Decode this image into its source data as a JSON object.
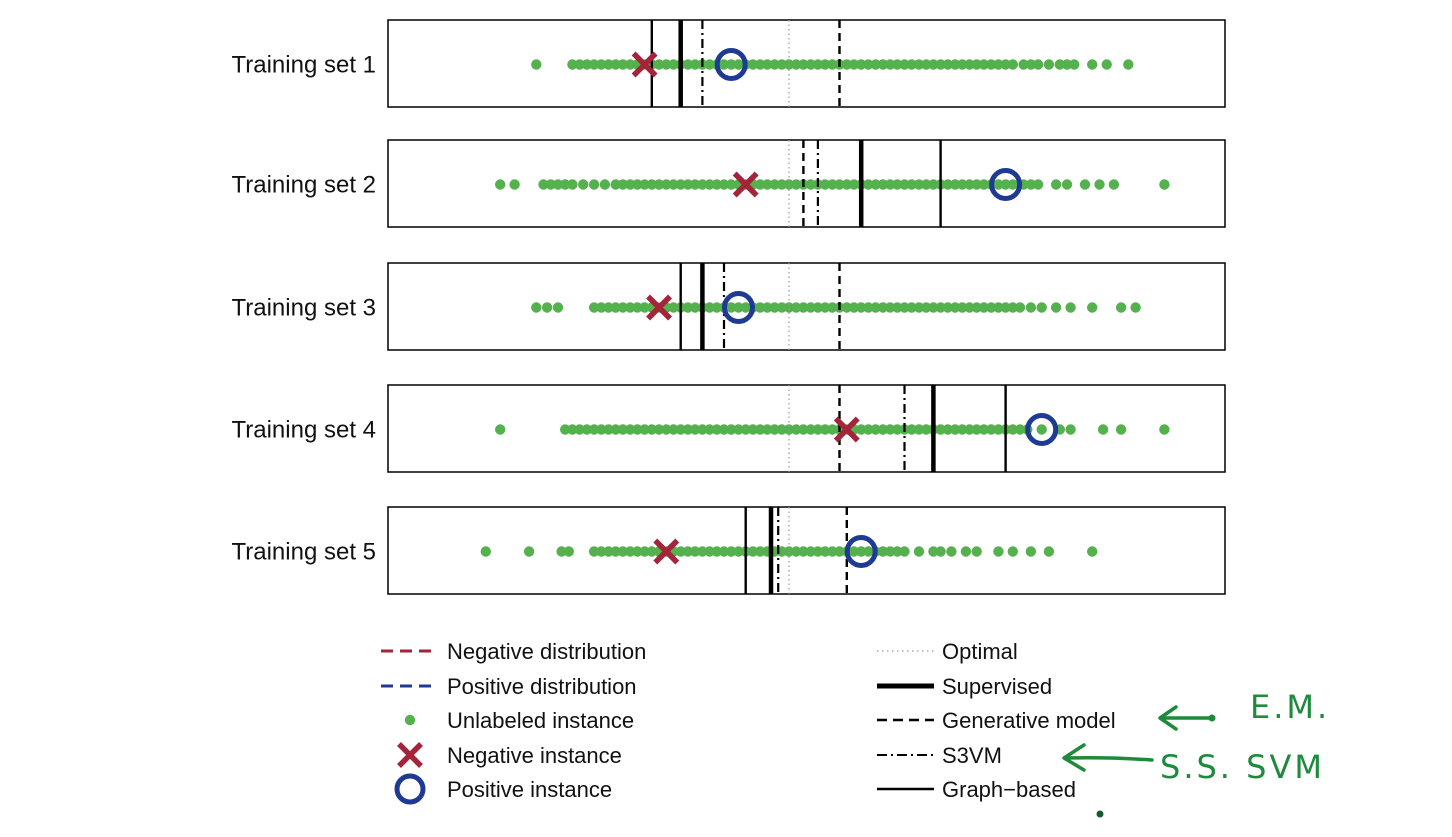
{
  "chart_data": {
    "type": "scatter",
    "axis": "1-D strip plot, no visible axis ticks",
    "xlim": [
      0,
      1
    ],
    "panels": [
      {
        "label": "Training set 1",
        "unlabeled": [
          0.15,
          0.2,
          0.21,
          0.22,
          0.23,
          0.24,
          0.25,
          0.26,
          0.27,
          0.28,
          0.29,
          0.3,
          0.31,
          0.32,
          0.33,
          0.34,
          0.35,
          0.36,
          0.37,
          0.38,
          0.39,
          0.4,
          0.41,
          0.42,
          0.43,
          0.44,
          0.45,
          0.46,
          0.47,
          0.48,
          0.49,
          0.5,
          0.51,
          0.52,
          0.53,
          0.54,
          0.55,
          0.56,
          0.57,
          0.58,
          0.59,
          0.6,
          0.61,
          0.62,
          0.63,
          0.64,
          0.65,
          0.66,
          0.67,
          0.68,
          0.69,
          0.7,
          0.71,
          0.72,
          0.73,
          0.74,
          0.75,
          0.76,
          0.77,
          0.78,
          0.79,
          0.8,
          0.81,
          0.825,
          0.835,
          0.845,
          0.86,
          0.875,
          0.885,
          0.895,
          0.92,
          0.94,
          0.97
        ],
        "negative": 0.3,
        "positive": 0.42,
        "optimal": 0.5,
        "supervised": 0.35,
        "generative": 0.57,
        "s3vm": 0.38,
        "graph": 0.31
      },
      {
        "label": "Training set 2",
        "unlabeled": [
          0.1,
          0.12,
          0.16,
          0.17,
          0.18,
          0.19,
          0.2,
          0.215,
          0.23,
          0.245,
          0.26,
          0.27,
          0.28,
          0.29,
          0.3,
          0.31,
          0.32,
          0.33,
          0.34,
          0.35,
          0.36,
          0.37,
          0.38,
          0.39,
          0.4,
          0.41,
          0.42,
          0.43,
          0.44,
          0.45,
          0.46,
          0.47,
          0.48,
          0.49,
          0.5,
          0.51,
          0.52,
          0.53,
          0.54,
          0.55,
          0.56,
          0.57,
          0.58,
          0.59,
          0.6,
          0.61,
          0.62,
          0.63,
          0.64,
          0.65,
          0.66,
          0.67,
          0.68,
          0.69,
          0.7,
          0.71,
          0.72,
          0.73,
          0.74,
          0.75,
          0.76,
          0.77,
          0.78,
          0.79,
          0.8,
          0.81,
          0.825,
          0.835,
          0.845,
          0.87,
          0.885,
          0.91,
          0.93,
          0.95,
          1.02
        ],
        "negative": 0.44,
        "positive": 0.8,
        "optimal": 0.5,
        "supervised": 0.6,
        "generative": 0.52,
        "s3vm": 0.54,
        "graph": 0.71
      },
      {
        "label": "Training set 3",
        "unlabeled": [
          0.15,
          0.165,
          0.18,
          0.23,
          0.24,
          0.25,
          0.26,
          0.27,
          0.28,
          0.29,
          0.3,
          0.31,
          0.32,
          0.33,
          0.34,
          0.35,
          0.36,
          0.37,
          0.38,
          0.39,
          0.4,
          0.41,
          0.42,
          0.43,
          0.44,
          0.45,
          0.46,
          0.47,
          0.48,
          0.49,
          0.5,
          0.51,
          0.52,
          0.53,
          0.54,
          0.55,
          0.56,
          0.57,
          0.58,
          0.59,
          0.6,
          0.61,
          0.62,
          0.63,
          0.64,
          0.65,
          0.66,
          0.67,
          0.68,
          0.69,
          0.7,
          0.71,
          0.72,
          0.73,
          0.74,
          0.75,
          0.76,
          0.77,
          0.78,
          0.79,
          0.8,
          0.81,
          0.82,
          0.835,
          0.85,
          0.87,
          0.89,
          0.92,
          0.96,
          0.98
        ],
        "negative": 0.32,
        "positive": 0.43,
        "optimal": 0.5,
        "supervised": 0.38,
        "generative": 0.57,
        "s3vm": 0.41,
        "graph": 0.35
      },
      {
        "label": "Training set 4",
        "unlabeled": [
          0.1,
          0.19,
          0.2,
          0.21,
          0.22,
          0.23,
          0.24,
          0.25,
          0.26,
          0.27,
          0.28,
          0.29,
          0.3,
          0.31,
          0.32,
          0.33,
          0.34,
          0.35,
          0.36,
          0.37,
          0.38,
          0.39,
          0.4,
          0.41,
          0.42,
          0.43,
          0.44,
          0.45,
          0.46,
          0.47,
          0.48,
          0.49,
          0.5,
          0.51,
          0.52,
          0.53,
          0.54,
          0.55,
          0.56,
          0.57,
          0.58,
          0.59,
          0.6,
          0.61,
          0.62,
          0.63,
          0.64,
          0.65,
          0.66,
          0.67,
          0.68,
          0.69,
          0.7,
          0.71,
          0.72,
          0.73,
          0.74,
          0.75,
          0.76,
          0.77,
          0.78,
          0.79,
          0.8,
          0.81,
          0.82,
          0.83,
          0.85,
          0.875,
          0.89,
          0.935,
          0.96,
          1.02
        ],
        "negative": 0.58,
        "positive": 0.85,
        "optimal": 0.5,
        "supervised": 0.7,
        "generative": 0.57,
        "s3vm": 0.66,
        "graph": 0.8
      },
      {
        "label": "Training set 5",
        "unlabeled": [
          0.08,
          0.14,
          0.185,
          0.195,
          0.23,
          0.24,
          0.25,
          0.26,
          0.27,
          0.28,
          0.29,
          0.3,
          0.31,
          0.32,
          0.33,
          0.34,
          0.35,
          0.36,
          0.37,
          0.38,
          0.39,
          0.4,
          0.41,
          0.42,
          0.43,
          0.44,
          0.45,
          0.46,
          0.47,
          0.48,
          0.49,
          0.5,
          0.51,
          0.52,
          0.53,
          0.54,
          0.55,
          0.56,
          0.57,
          0.58,
          0.59,
          0.6,
          0.61,
          0.62,
          0.63,
          0.64,
          0.65,
          0.66,
          0.68,
          0.7,
          0.71,
          0.725,
          0.745,
          0.76,
          0.79,
          0.81,
          0.835,
          0.86,
          0.92
        ],
        "negative": 0.33,
        "positive": 0.6,
        "optimal": 0.5,
        "supervised": 0.475,
        "generative": 0.58,
        "s3vm": 0.485,
        "graph": 0.44
      }
    ],
    "legend": {
      "left": [
        {
          "label": "Negative distribution",
          "symbol": "dashed-line",
          "color": "#a3243b"
        },
        {
          "label": "Positive distribution",
          "symbol": "dashed-line",
          "color": "#1f3a93"
        },
        {
          "label": "Unlabeled instance",
          "symbol": "dot",
          "color": "#55b04e"
        },
        {
          "label": "Negative instance",
          "symbol": "x-mark",
          "color": "#a3243b"
        },
        {
          "label": "Positive instance",
          "symbol": "circle",
          "color": "#1f3a93"
        }
      ],
      "right": [
        {
          "label": "Optimal",
          "symbol": "dotted-line",
          "color": "#999999"
        },
        {
          "label": "Supervised",
          "symbol": "thick-solid-line",
          "color": "#000000"
        },
        {
          "label": "Generative model",
          "symbol": "dashed-line",
          "color": "#000000"
        },
        {
          "label": "S3VM",
          "symbol": "dash-dot-line",
          "color": "#000000"
        },
        {
          "label": "Graph−based",
          "symbol": "solid-line",
          "color": "#000000"
        }
      ]
    },
    "annotations": {
      "em": "E.M.",
      "s3vm_note": "S.S. SVM"
    },
    "colors": {
      "unlabeled": "#55b04e",
      "negative": "#a3243b",
      "positive": "#1f3a93",
      "annotation": "#1e8a3c"
    },
    "grid": false
  }
}
